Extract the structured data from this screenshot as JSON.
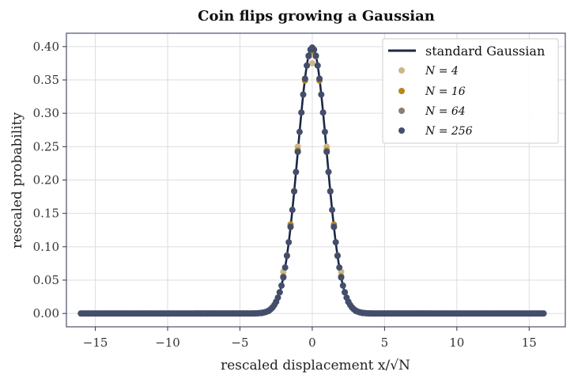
{
  "chart_data": {
    "type": "scatter",
    "title": "Coin flips growing a Gaussian",
    "xlabel": "rescaled displacement x/√N",
    "ylabel": "rescaled probability",
    "xlim": [
      -17.0,
      17.5
    ],
    "ylim": [
      -0.02,
      0.42
    ],
    "xticks": [
      -15,
      -10,
      -5,
      0,
      5,
      10,
      15
    ],
    "xtick_labels": [
      "−15",
      "−10",
      "−5",
      "0",
      "5",
      "10",
      "15"
    ],
    "yticks": [
      0.0,
      0.05,
      0.1,
      0.15,
      0.2,
      0.25,
      0.3,
      0.35,
      0.4
    ],
    "ytick_labels": [
      "0.00",
      "0.05",
      "0.10",
      "0.15",
      "0.20",
      "0.25",
      "0.30",
      "0.35",
      "0.40"
    ],
    "grid": true,
    "legend_position": "top-right",
    "curve": {
      "name": "standard Gaussian",
      "color": "#1b2845",
      "function": "exp(-x^2/2)/sqrt(2*pi)",
      "x_range": [
        -16,
        16
      ]
    },
    "series": [
      {
        "name": "N = 4",
        "N": 4,
        "color": "#cdb688"
      },
      {
        "name": "N = 16",
        "N": 16,
        "color": "#b8861b"
      },
      {
        "name": "N = 64",
        "N": 64,
        "color": "#8a7d72"
      },
      {
        "name": "N = 256",
        "N": 256,
        "color": "#434e6b"
      }
    ],
    "point_rule": "points at x = (2k - N)/sqrt(N), k = 0..N, with y = C(N,k) 2^(-N) sqrt(N)/2"
  }
}
